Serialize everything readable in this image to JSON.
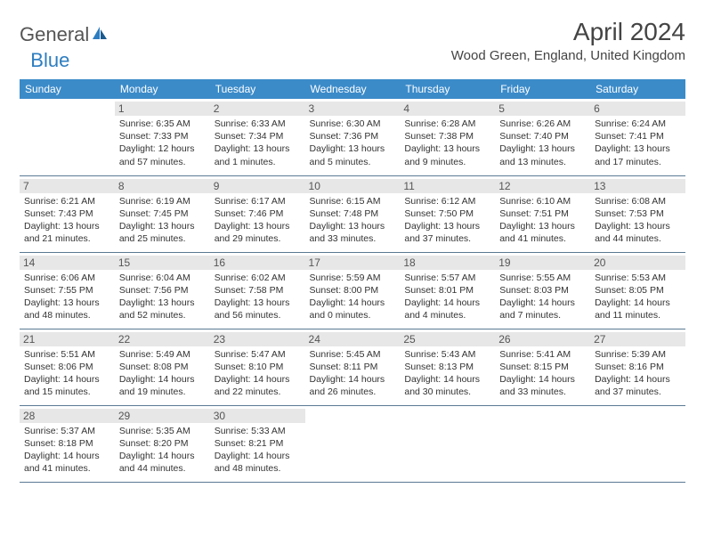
{
  "logo": {
    "text1": "General",
    "text2": "Blue"
  },
  "title": "April 2024",
  "location": "Wood Green, England, United Kingdom",
  "colors": {
    "header_bg": "#3b8bc9",
    "header_text": "#ffffff",
    "daynum_bg": "#e7e7e7",
    "border": "#5a7a94",
    "logo_gray": "#555555",
    "logo_blue": "#2d7dc0"
  },
  "days_of_week": [
    "Sunday",
    "Monday",
    "Tuesday",
    "Wednesday",
    "Thursday",
    "Friday",
    "Saturday"
  ],
  "weeks": [
    [
      null,
      {
        "n": "1",
        "sunrise": "Sunrise: 6:35 AM",
        "sunset": "Sunset: 7:33 PM",
        "dl1": "Daylight: 12 hours",
        "dl2": "and 57 minutes."
      },
      {
        "n": "2",
        "sunrise": "Sunrise: 6:33 AM",
        "sunset": "Sunset: 7:34 PM",
        "dl1": "Daylight: 13 hours",
        "dl2": "and 1 minutes."
      },
      {
        "n": "3",
        "sunrise": "Sunrise: 6:30 AM",
        "sunset": "Sunset: 7:36 PM",
        "dl1": "Daylight: 13 hours",
        "dl2": "and 5 minutes."
      },
      {
        "n": "4",
        "sunrise": "Sunrise: 6:28 AM",
        "sunset": "Sunset: 7:38 PM",
        "dl1": "Daylight: 13 hours",
        "dl2": "and 9 minutes."
      },
      {
        "n": "5",
        "sunrise": "Sunrise: 6:26 AM",
        "sunset": "Sunset: 7:40 PM",
        "dl1": "Daylight: 13 hours",
        "dl2": "and 13 minutes."
      },
      {
        "n": "6",
        "sunrise": "Sunrise: 6:24 AM",
        "sunset": "Sunset: 7:41 PM",
        "dl1": "Daylight: 13 hours",
        "dl2": "and 17 minutes."
      }
    ],
    [
      {
        "n": "7",
        "sunrise": "Sunrise: 6:21 AM",
        "sunset": "Sunset: 7:43 PM",
        "dl1": "Daylight: 13 hours",
        "dl2": "and 21 minutes."
      },
      {
        "n": "8",
        "sunrise": "Sunrise: 6:19 AM",
        "sunset": "Sunset: 7:45 PM",
        "dl1": "Daylight: 13 hours",
        "dl2": "and 25 minutes."
      },
      {
        "n": "9",
        "sunrise": "Sunrise: 6:17 AM",
        "sunset": "Sunset: 7:46 PM",
        "dl1": "Daylight: 13 hours",
        "dl2": "and 29 minutes."
      },
      {
        "n": "10",
        "sunrise": "Sunrise: 6:15 AM",
        "sunset": "Sunset: 7:48 PM",
        "dl1": "Daylight: 13 hours",
        "dl2": "and 33 minutes."
      },
      {
        "n": "11",
        "sunrise": "Sunrise: 6:12 AM",
        "sunset": "Sunset: 7:50 PM",
        "dl1": "Daylight: 13 hours",
        "dl2": "and 37 minutes."
      },
      {
        "n": "12",
        "sunrise": "Sunrise: 6:10 AM",
        "sunset": "Sunset: 7:51 PM",
        "dl1": "Daylight: 13 hours",
        "dl2": "and 41 minutes."
      },
      {
        "n": "13",
        "sunrise": "Sunrise: 6:08 AM",
        "sunset": "Sunset: 7:53 PM",
        "dl1": "Daylight: 13 hours",
        "dl2": "and 44 minutes."
      }
    ],
    [
      {
        "n": "14",
        "sunrise": "Sunrise: 6:06 AM",
        "sunset": "Sunset: 7:55 PM",
        "dl1": "Daylight: 13 hours",
        "dl2": "and 48 minutes."
      },
      {
        "n": "15",
        "sunrise": "Sunrise: 6:04 AM",
        "sunset": "Sunset: 7:56 PM",
        "dl1": "Daylight: 13 hours",
        "dl2": "and 52 minutes."
      },
      {
        "n": "16",
        "sunrise": "Sunrise: 6:02 AM",
        "sunset": "Sunset: 7:58 PM",
        "dl1": "Daylight: 13 hours",
        "dl2": "and 56 minutes."
      },
      {
        "n": "17",
        "sunrise": "Sunrise: 5:59 AM",
        "sunset": "Sunset: 8:00 PM",
        "dl1": "Daylight: 14 hours",
        "dl2": "and 0 minutes."
      },
      {
        "n": "18",
        "sunrise": "Sunrise: 5:57 AM",
        "sunset": "Sunset: 8:01 PM",
        "dl1": "Daylight: 14 hours",
        "dl2": "and 4 minutes."
      },
      {
        "n": "19",
        "sunrise": "Sunrise: 5:55 AM",
        "sunset": "Sunset: 8:03 PM",
        "dl1": "Daylight: 14 hours",
        "dl2": "and 7 minutes."
      },
      {
        "n": "20",
        "sunrise": "Sunrise: 5:53 AM",
        "sunset": "Sunset: 8:05 PM",
        "dl1": "Daylight: 14 hours",
        "dl2": "and 11 minutes."
      }
    ],
    [
      {
        "n": "21",
        "sunrise": "Sunrise: 5:51 AM",
        "sunset": "Sunset: 8:06 PM",
        "dl1": "Daylight: 14 hours",
        "dl2": "and 15 minutes."
      },
      {
        "n": "22",
        "sunrise": "Sunrise: 5:49 AM",
        "sunset": "Sunset: 8:08 PM",
        "dl1": "Daylight: 14 hours",
        "dl2": "and 19 minutes."
      },
      {
        "n": "23",
        "sunrise": "Sunrise: 5:47 AM",
        "sunset": "Sunset: 8:10 PM",
        "dl1": "Daylight: 14 hours",
        "dl2": "and 22 minutes."
      },
      {
        "n": "24",
        "sunrise": "Sunrise: 5:45 AM",
        "sunset": "Sunset: 8:11 PM",
        "dl1": "Daylight: 14 hours",
        "dl2": "and 26 minutes."
      },
      {
        "n": "25",
        "sunrise": "Sunrise: 5:43 AM",
        "sunset": "Sunset: 8:13 PM",
        "dl1": "Daylight: 14 hours",
        "dl2": "and 30 minutes."
      },
      {
        "n": "26",
        "sunrise": "Sunrise: 5:41 AM",
        "sunset": "Sunset: 8:15 PM",
        "dl1": "Daylight: 14 hours",
        "dl2": "and 33 minutes."
      },
      {
        "n": "27",
        "sunrise": "Sunrise: 5:39 AM",
        "sunset": "Sunset: 8:16 PM",
        "dl1": "Daylight: 14 hours",
        "dl2": "and 37 minutes."
      }
    ],
    [
      {
        "n": "28",
        "sunrise": "Sunrise: 5:37 AM",
        "sunset": "Sunset: 8:18 PM",
        "dl1": "Daylight: 14 hours",
        "dl2": "and 41 minutes."
      },
      {
        "n": "29",
        "sunrise": "Sunrise: 5:35 AM",
        "sunset": "Sunset: 8:20 PM",
        "dl1": "Daylight: 14 hours",
        "dl2": "and 44 minutes."
      },
      {
        "n": "30",
        "sunrise": "Sunrise: 5:33 AM",
        "sunset": "Sunset: 8:21 PM",
        "dl1": "Daylight: 14 hours",
        "dl2": "and 48 minutes."
      },
      null,
      null,
      null,
      null
    ]
  ]
}
